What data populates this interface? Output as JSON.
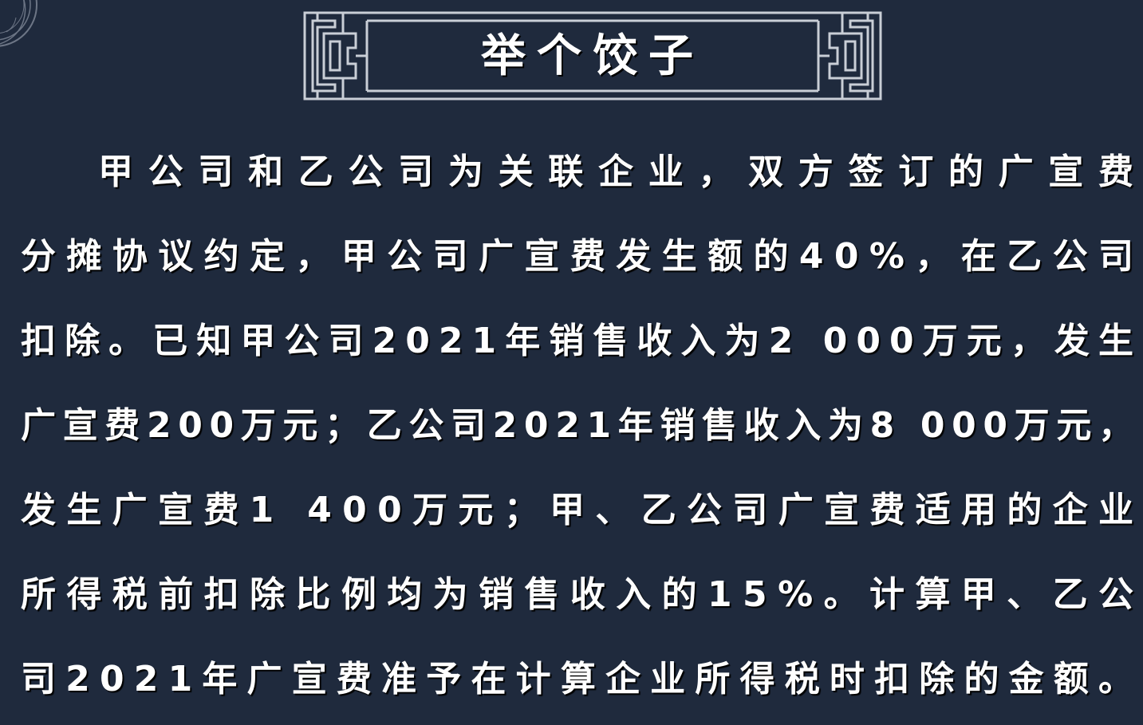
{
  "title": "举个饺子",
  "paragraph_lines": [
    "甲公司和乙公司为关联企业，双方签订的广宣费",
    "分摊协议约定，甲公司广宣费发生额的40%，在乙公司",
    "扣除。已知甲公司2021年销售收入为2 000万元，发生",
    "广宣费200万元；乙公司2021年销售收入为8 000万元，",
    "发生广宣费1 400万元；甲、乙公司广宣费适用的企业",
    "所得税前扣除比例均为销售收入的15%。计算甲、乙公",
    "司2021年广宣费准予在计算企业所得税时扣除的金额。"
  ],
  "colors": {
    "background": "#1f2a3d",
    "text": "#ffffff",
    "frame": "#c9ced6"
  }
}
